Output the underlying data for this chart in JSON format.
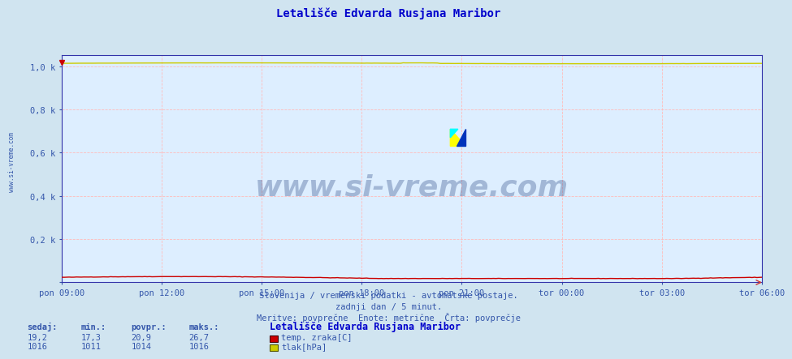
{
  "title": "Letališče Edvarda Rusjana Maribor",
  "title_color": "#0000cc",
  "title_fontsize": 10,
  "bg_color": "#d0e4f0",
  "plot_bg_color": "#ddeeff",
  "grid_color": "#ffbbbb",
  "axis_color": "#3333aa",
  "text_color": "#3355aa",
  "ylim": [
    0,
    1050
  ],
  "yticks": [
    0,
    200,
    400,
    600,
    800,
    1000
  ],
  "ytick_labels": [
    "",
    "0,2 k",
    "0,4 k",
    "0,6 k",
    "0,8 k",
    "1,0 k"
  ],
  "xtick_labels": [
    "pon 09:00",
    "pon 12:00",
    "pon 15:00",
    "pon 18:00",
    "pon 21:00",
    "tor 00:00",
    "tor 03:00",
    "tor 06:00"
  ],
  "n_points": 288,
  "subtitle1": "Slovenija / vremenski podatki - avtomatske postaje.",
  "subtitle2": "zadnji dan / 5 minut.",
  "subtitle3": "Meritve: povprečne  Enote: metrične  Črta: povprečje",
  "legend_title": "Letališče Edvarda Rusjana Maribor",
  "legend_temp_label": "temp. zraka[C]",
  "legend_pressure_label": "tlak[hPa]",
  "temp_color": "#cc0000",
  "pressure_color": "#cccc00",
  "watermark": "www.si-vreme.com",
  "watermark_color": "#1a3a7a",
  "sidebar_text": "www.si-vreme.com",
  "info_sedaj": "19,2",
  "info_min": "17,3",
  "info_povpr": "20,9",
  "info_maks": "26,7",
  "info_tlak_sedaj": "1016",
  "info_tlak_min": "1011",
  "info_tlak_povpr": "1014",
  "info_tlak_maks": "1016"
}
